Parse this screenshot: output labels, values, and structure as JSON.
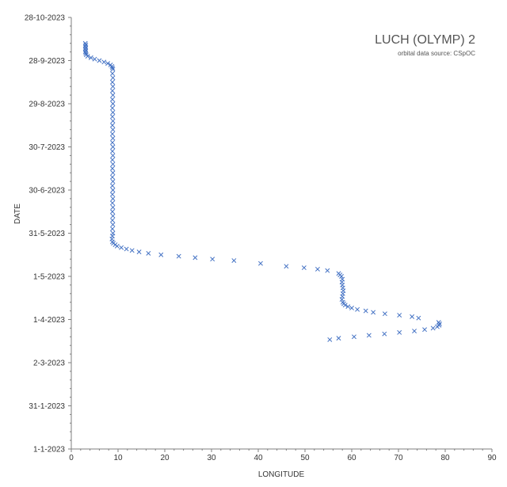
{
  "chart_data": {
    "type": "scatter",
    "title": "LUCH (OLYMP) 2",
    "subtitle": "orbital data source:  CSpOC",
    "xlabel": "LONGITUDE",
    "ylabel": "DATE",
    "xlim": [
      0,
      90
    ],
    "ylim": [
      "2023-01-01",
      "2023-10-28"
    ],
    "x_ticks": [
      "0",
      "10",
      "20",
      "30",
      "40",
      "50",
      "60",
      "70",
      "80",
      "90"
    ],
    "y_ticks": [
      "1-1-2023",
      "31-1-2023",
      "2-3-2023",
      "1-4-2023",
      "1-5-2023",
      "31-5-2023",
      "30-6-2023",
      "30-7-2023",
      "29-8-2023",
      "28-9-2023",
      "28-10-2023"
    ],
    "grid": false,
    "marker": "x",
    "marker_color": "#4472c4",
    "points": [
      {
        "date": "2023-03-18",
        "lon": 55.3
      },
      {
        "date": "2023-03-19",
        "lon": 57.2
      },
      {
        "date": "2023-03-20",
        "lon": 60.5
      },
      {
        "date": "2023-03-21",
        "lon": 63.7
      },
      {
        "date": "2023-03-22",
        "lon": 67.0
      },
      {
        "date": "2023-03-23",
        "lon": 70.2
      },
      {
        "date": "2023-03-24",
        "lon": 73.4
      },
      {
        "date": "2023-03-25",
        "lon": 75.6
      },
      {
        "date": "2023-03-26",
        "lon": 77.4
      },
      {
        "date": "2023-03-27",
        "lon": 78.3
      },
      {
        "date": "2023-03-28",
        "lon": 78.7
      },
      {
        "date": "2023-03-29",
        "lon": 78.8
      },
      {
        "date": "2023-03-30",
        "lon": 78.6
      },
      {
        "date": "2023-04-02",
        "lon": 74.3
      },
      {
        "date": "2023-04-03",
        "lon": 72.9
      },
      {
        "date": "2023-04-04",
        "lon": 70.2
      },
      {
        "date": "2023-04-05",
        "lon": 67.1
      },
      {
        "date": "2023-04-06",
        "lon": 64.6
      },
      {
        "date": "2023-04-07",
        "lon": 63.0
      },
      {
        "date": "2023-04-08",
        "lon": 61.2
      },
      {
        "date": "2023-04-09",
        "lon": 60.0
      },
      {
        "date": "2023-04-10",
        "lon": 59.2
      },
      {
        "date": "2023-04-11",
        "lon": 58.6
      },
      {
        "date": "2023-04-12",
        "lon": 58.3
      },
      {
        "date": "2023-04-13",
        "lon": 58.1
      },
      {
        "date": "2023-04-15",
        "lon": 57.9
      },
      {
        "date": "2023-04-17",
        "lon": 58.0
      },
      {
        "date": "2023-04-19",
        "lon": 58.1
      },
      {
        "date": "2023-04-21",
        "lon": 58.2
      },
      {
        "date": "2023-04-23",
        "lon": 58.1
      },
      {
        "date": "2023-04-25",
        "lon": 58.0
      },
      {
        "date": "2023-04-27",
        "lon": 57.9
      },
      {
        "date": "2023-04-29",
        "lon": 58.0
      },
      {
        "date": "2023-05-01",
        "lon": 57.8
      },
      {
        "date": "2023-05-02",
        "lon": 57.5
      },
      {
        "date": "2023-05-03",
        "lon": 57.2
      },
      {
        "date": "2023-05-05",
        "lon": 54.8
      },
      {
        "date": "2023-05-06",
        "lon": 52.7
      },
      {
        "date": "2023-05-07",
        "lon": 49.8
      },
      {
        "date": "2023-05-08",
        "lon": 46.0
      },
      {
        "date": "2023-05-10",
        "lon": 40.5
      },
      {
        "date": "2023-05-12",
        "lon": 34.8
      },
      {
        "date": "2023-05-13",
        "lon": 30.2
      },
      {
        "date": "2023-05-14",
        "lon": 26.5
      },
      {
        "date": "2023-05-15",
        "lon": 23.0
      },
      {
        "date": "2023-05-16",
        "lon": 19.2
      },
      {
        "date": "2023-05-17",
        "lon": 16.5
      },
      {
        "date": "2023-05-18",
        "lon": 14.5
      },
      {
        "date": "2023-05-19",
        "lon": 13.0
      },
      {
        "date": "2023-05-20",
        "lon": 11.8
      },
      {
        "date": "2023-05-21",
        "lon": 10.7
      },
      {
        "date": "2023-05-22",
        "lon": 9.8
      },
      {
        "date": "2023-05-23",
        "lon": 9.4
      },
      {
        "date": "2023-05-24",
        "lon": 9.0
      },
      {
        "date": "2023-05-25",
        "lon": 8.8
      },
      {
        "date": "2023-05-27",
        "lon": 8.7
      },
      {
        "date": "2023-05-29",
        "lon": 8.8
      },
      {
        "date": "2023-05-31",
        "lon": 8.9
      },
      {
        "date": "2023-06-03",
        "lon": 8.8
      },
      {
        "date": "2023-06-06",
        "lon": 8.9
      },
      {
        "date": "2023-06-09",
        "lon": 8.8
      },
      {
        "date": "2023-06-12",
        "lon": 8.9
      },
      {
        "date": "2023-06-15",
        "lon": 8.8
      },
      {
        "date": "2023-06-18",
        "lon": 8.9
      },
      {
        "date": "2023-06-21",
        "lon": 8.8
      },
      {
        "date": "2023-06-24",
        "lon": 8.9
      },
      {
        "date": "2023-06-27",
        "lon": 8.8
      },
      {
        "date": "2023-06-30",
        "lon": 8.9
      },
      {
        "date": "2023-07-03",
        "lon": 8.8
      },
      {
        "date": "2023-07-06",
        "lon": 8.9
      },
      {
        "date": "2023-07-09",
        "lon": 8.8
      },
      {
        "date": "2023-07-12",
        "lon": 8.9
      },
      {
        "date": "2023-07-15",
        "lon": 8.8
      },
      {
        "date": "2023-07-18",
        "lon": 8.9
      },
      {
        "date": "2023-07-21",
        "lon": 8.8
      },
      {
        "date": "2023-07-24",
        "lon": 8.9
      },
      {
        "date": "2023-07-27",
        "lon": 8.8
      },
      {
        "date": "2023-07-30",
        "lon": 8.9
      },
      {
        "date": "2023-08-02",
        "lon": 8.8
      },
      {
        "date": "2023-08-05",
        "lon": 8.9
      },
      {
        "date": "2023-08-08",
        "lon": 8.8
      },
      {
        "date": "2023-08-11",
        "lon": 8.9
      },
      {
        "date": "2023-08-14",
        "lon": 8.8
      },
      {
        "date": "2023-08-17",
        "lon": 8.9
      },
      {
        "date": "2023-08-20",
        "lon": 8.8
      },
      {
        "date": "2023-08-23",
        "lon": 8.9
      },
      {
        "date": "2023-08-26",
        "lon": 8.8
      },
      {
        "date": "2023-08-29",
        "lon": 8.9
      },
      {
        "date": "2023-09-01",
        "lon": 8.8
      },
      {
        "date": "2023-09-04",
        "lon": 8.9
      },
      {
        "date": "2023-09-07",
        "lon": 8.8
      },
      {
        "date": "2023-09-10",
        "lon": 8.9
      },
      {
        "date": "2023-09-13",
        "lon": 8.8
      },
      {
        "date": "2023-09-16",
        "lon": 8.9
      },
      {
        "date": "2023-09-19",
        "lon": 8.8
      },
      {
        "date": "2023-09-22",
        "lon": 8.9
      },
      {
        "date": "2023-09-23",
        "lon": 8.8
      },
      {
        "date": "2023-09-24",
        "lon": 8.7
      },
      {
        "date": "2023-09-25",
        "lon": 8.4
      },
      {
        "date": "2023-09-26",
        "lon": 7.8
      },
      {
        "date": "2023-09-27",
        "lon": 7.0
      },
      {
        "date": "2023-09-28",
        "lon": 6.0
      },
      {
        "date": "2023-09-29",
        "lon": 5.0
      },
      {
        "date": "2023-09-30",
        "lon": 4.2
      },
      {
        "date": "2023-10-01",
        "lon": 3.5
      },
      {
        "date": "2023-10-02",
        "lon": 3.2
      },
      {
        "date": "2023-10-03",
        "lon": 3.1
      },
      {
        "date": "2023-10-04",
        "lon": 3.0
      },
      {
        "date": "2023-10-05",
        "lon": 3.1
      },
      {
        "date": "2023-10-06",
        "lon": 3.0
      },
      {
        "date": "2023-10-07",
        "lon": 3.1
      },
      {
        "date": "2023-10-08",
        "lon": 3.0
      },
      {
        "date": "2023-10-09",
        "lon": 3.1
      },
      {
        "date": "2023-10-10",
        "lon": 3.0
      }
    ]
  }
}
